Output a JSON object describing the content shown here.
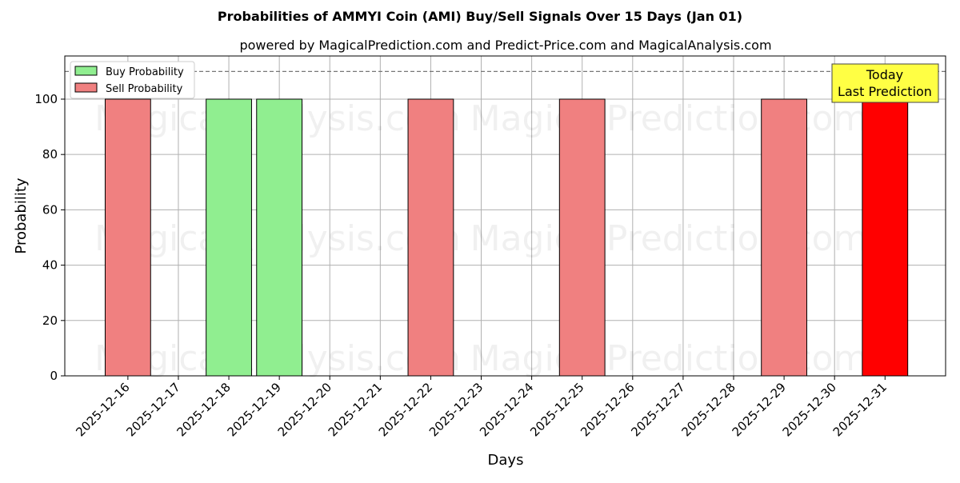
{
  "chart_data": {
    "type": "bar",
    "title": "Probabilities of AMMYI Coin (AMI) Buy/Sell Signals Over 15 Days (Jan 01)",
    "subtitle": "powered by MagicalPrediction.com and Predict-Price.com and MagicalAnalysis.com",
    "xlabel": "Days",
    "ylabel": "Probability",
    "categories": [
      "2025-12-16",
      "2025-12-17",
      "2025-12-18",
      "2025-12-19",
      "2025-12-20",
      "2025-12-21",
      "2025-12-22",
      "2025-12-23",
      "2025-12-24",
      "2025-12-25",
      "2025-12-26",
      "2025-12-27",
      "2025-12-28",
      "2025-12-29",
      "2025-12-30",
      "2025-12-31"
    ],
    "series": [
      {
        "name": "Buy Probability",
        "color": "#90ee90",
        "values": [
          0,
          0,
          100,
          100,
          0,
          0,
          0,
          0,
          0,
          0,
          0,
          0,
          0,
          0,
          0,
          0
        ]
      },
      {
        "name": "Sell Probability",
        "color": "#f08080",
        "values": [
          100,
          0,
          0,
          0,
          0,
          0,
          100,
          0,
          0,
          100,
          0,
          0,
          0,
          100,
          0,
          100
        ]
      }
    ],
    "highlight": {
      "index": 15,
      "color": "#ff0000"
    },
    "ylim": [
      0,
      115.6
    ],
    "yticks": [
      0,
      20,
      40,
      60,
      80,
      100
    ],
    "threshold_line": 110,
    "grid": true,
    "legend": "top-left",
    "annotation": {
      "line1": "Today",
      "line2": "Last Prediction"
    },
    "watermarks": [
      "MagicalAnalysis.com",
      "Magica Prediction.com"
    ]
  }
}
